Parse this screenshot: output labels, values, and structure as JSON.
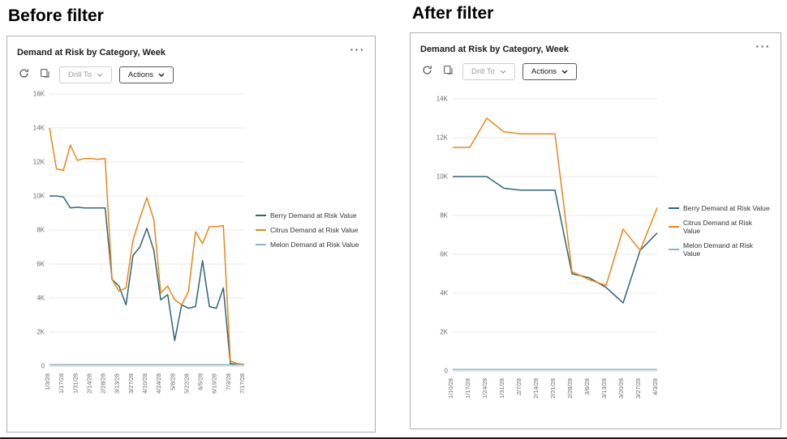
{
  "headings": {
    "before": "Before filter",
    "after": "After filter"
  },
  "panel": {
    "title": "Demand at Risk by Category, Week",
    "menu_icon": "···",
    "toolbar": {
      "drill_to_label": "Drill To",
      "actions_label": "Actions"
    }
  },
  "colors": {
    "berry": "#2F6673",
    "citrus": "#E8861D",
    "melon": "#8FB4C0",
    "grid": "#EAEAEA",
    "zero_line": "#CFCFCF",
    "tick_text": "#6B6B6B"
  },
  "chart_data": [
    {
      "id": "before",
      "type": "line",
      "title": "Demand at Risk by Category, Week",
      "ylim": [
        0,
        16000
      ],
      "y_tick_values": [
        0,
        2000,
        4000,
        6000,
        8000,
        10000,
        12000,
        14000,
        16000
      ],
      "y_tick_labels": [
        "0",
        "2K",
        "4K",
        "6K",
        "8K",
        "10K",
        "12K",
        "14K",
        "16K"
      ],
      "x_labels": [
        "1/3/28",
        "1/17/28",
        "1/31/28",
        "2/14/28",
        "2/28/28",
        "3/13/28",
        "3/27/28",
        "4/10/28",
        "4/24/28",
        "5/8/28",
        "5/22/28",
        "6/5/28",
        "6/19/28",
        "7/3/28",
        "7/17/28"
      ],
      "label_every": 2,
      "grid": true,
      "legend_position": "right",
      "series": [
        {
          "name": "Berry Demand at Risk Value",
          "color_key": "berry",
          "values": [
            10000,
            10000,
            9950,
            9300,
            9350,
            9300,
            9300,
            9300,
            9300,
            5100,
            4700,
            3600,
            6500,
            7000,
            8100,
            6800,
            3900,
            4200,
            1500,
            3600,
            3400,
            3500,
            6200,
            3500,
            3400,
            4600,
            150,
            100,
            80
          ]
        },
        {
          "name": "Citrus Demand at Risk Value",
          "color_key": "citrus",
          "values": [
            14000,
            11600,
            11500,
            13000,
            12100,
            12200,
            12200,
            12150,
            12200,
            5100,
            4400,
            4600,
            7400,
            8700,
            9900,
            8600,
            4300,
            4700,
            3900,
            3600,
            4400,
            7900,
            7200,
            8200,
            8200,
            8250,
            300,
            150,
            100
          ]
        },
        {
          "name": "Melon Demand at Risk Value",
          "color_key": "melon",
          "values": [
            80,
            80,
            80,
            80,
            80,
            80,
            80,
            80,
            80,
            80,
            80,
            80,
            80,
            80,
            80,
            80,
            80,
            80,
            80,
            80,
            80,
            80,
            80,
            80,
            80,
            80,
            80,
            80,
            80
          ]
        }
      ]
    },
    {
      "id": "after",
      "type": "line",
      "title": "Demand at Risk by Category, Week",
      "ylim": [
        0,
        14000
      ],
      "y_tick_values": [
        0,
        2000,
        4000,
        6000,
        8000,
        10000,
        12000,
        14000
      ],
      "y_tick_labels": [
        "0",
        "2K",
        "4K",
        "6K",
        "8K",
        "10K",
        "12K",
        "14K"
      ],
      "x_labels": [
        "1/10/28",
        "1/17/28",
        "1/24/28",
        "1/31/28",
        "2/7/28",
        "2/14/28",
        "2/21/28",
        "2/28/28",
        "3/6/28",
        "3/13/28",
        "3/20/28",
        "3/27/28",
        "4/3/28"
      ],
      "label_every": 1,
      "grid": true,
      "legend_position": "right",
      "series": [
        {
          "name": "Berry Demand at Risk Value",
          "color_key": "berry",
          "values": [
            10000,
            10000,
            10000,
            9400,
            9300,
            9300,
            9300,
            5000,
            4800,
            4300,
            3500,
            6200,
            7100
          ]
        },
        {
          "name": "Citrus Demand at Risk Value",
          "color_key": "citrus",
          "values": [
            11500,
            11500,
            13000,
            12300,
            12200,
            12200,
            12200,
            5100,
            4700,
            4400,
            7300,
            6200,
            8400
          ]
        },
        {
          "name": "Melon Demand at Risk Value",
          "color_key": "melon",
          "values": [
            80,
            80,
            80,
            80,
            80,
            80,
            80,
            80,
            80,
            80,
            80,
            80,
            80
          ]
        }
      ]
    }
  ]
}
